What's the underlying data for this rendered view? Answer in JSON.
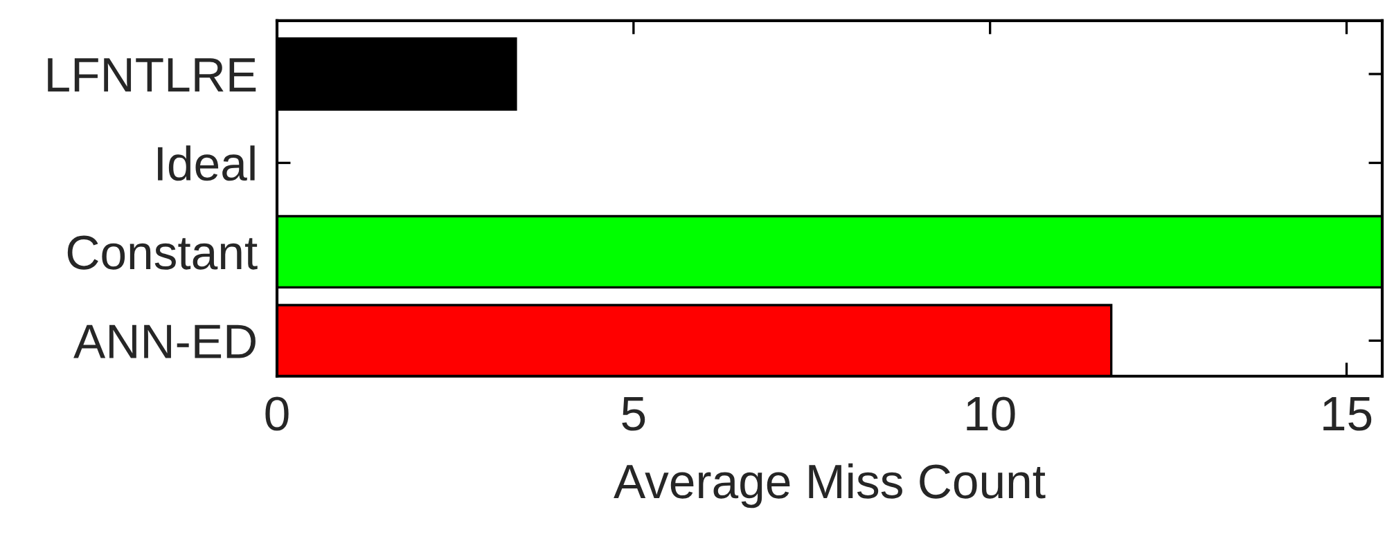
{
  "chart_data": {
    "type": "bar",
    "orientation": "horizontal",
    "xlabel": "Average Miss Count",
    "categories": [
      "LFNTLRE",
      "Ideal",
      "Constant",
      "ANN-ED"
    ],
    "values": [
      3.35,
      0,
      15.5,
      11.7
    ],
    "colors": [
      "#000000",
      "#ffffff",
      "#00ff00",
      "#ff0000"
    ],
    "xlim": [
      0,
      15.5
    ],
    "xticks": [
      0,
      5,
      10,
      15
    ],
    "grid": false,
    "legend": false
  }
}
